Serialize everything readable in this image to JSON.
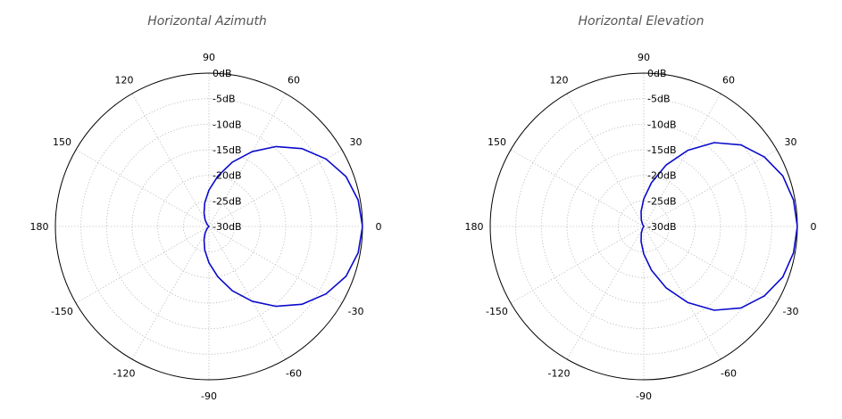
{
  "chart_data": [
    {
      "type": "polar",
      "title": "Horizontal Azimuth",
      "angle_ticks": [
        0,
        30,
        60,
        90,
        120,
        150,
        180,
        -150,
        -120,
        -90,
        -60,
        -30
      ],
      "radial_ticks": [
        "0dB",
        "-5dB",
        "-10dB",
        "-15dB",
        "-20dB",
        "-25dB",
        "-30dB"
      ],
      "rlim_db": [
        -30,
        0
      ],
      "grid": true,
      "series": [
        {
          "color": "#0a0acc",
          "theta": [
            0,
            10,
            20,
            30,
            40,
            50,
            60,
            70,
            80,
            90,
            100,
            110,
            120,
            130,
            140,
            150,
            160,
            170,
            180,
            -170,
            -160,
            -150,
            -140,
            -130,
            -120,
            -110,
            -100,
            -90,
            -80,
            -70,
            -60,
            -50,
            -40,
            -30,
            -20,
            -10
          ],
          "db": [
            0,
            -0.4,
            -1.5,
            -3.6,
            -6.3,
            -9.6,
            -13.1,
            -16.6,
            -20.0,
            -22.9,
            -25.3,
            -27.2,
            -28.5,
            -29.4,
            -29.9,
            -30,
            -30,
            -30,
            -30,
            -30,
            -30,
            -30,
            -29.9,
            -29.4,
            -28.5,
            -27.2,
            -25.3,
            -22.9,
            -20.0,
            -16.6,
            -13.1,
            -9.6,
            -6.3,
            -3.6,
            -1.5,
            -0.4
          ]
        }
      ]
    },
    {
      "type": "polar",
      "title": "Horizontal Elevation",
      "angle_ticks": [
        0,
        30,
        60,
        90,
        120,
        150,
        180,
        -150,
        -120,
        -90,
        -60,
        -30
      ],
      "radial_ticks": [
        "0dB",
        "-5dB",
        "-10dB",
        "-15dB",
        "-20dB",
        "-25dB",
        "-30dB"
      ],
      "rlim_db": [
        -30,
        0
      ],
      "grid": true,
      "series": [
        {
          "color": "#0a0acc",
          "theta": [
            0,
            10,
            20,
            30,
            40,
            50,
            60,
            70,
            80,
            90,
            100,
            110,
            120,
            130,
            140,
            150,
            160,
            170,
            180,
            -170,
            -160,
            -150,
            -140,
            -130,
            -120,
            -110,
            -100,
            -90,
            -80,
            -70,
            -60,
            -50,
            -40,
            -30,
            -20,
            -10
          ],
          "db": [
            0,
            -0.3,
            -1.1,
            -2.8,
            -5.2,
            -8.6,
            -12.8,
            -17.2,
            -21.3,
            -24.6,
            -27.0,
            -28.6,
            -29.5,
            -29.9,
            -30,
            -30,
            -30,
            -30,
            -30,
            -30,
            -30,
            -30,
            -30,
            -29.9,
            -29.5,
            -28.6,
            -27.0,
            -24.6,
            -21.3,
            -17.2,
            -12.8,
            -8.6,
            -5.2,
            -2.8,
            -1.1,
            -0.3
          ]
        }
      ]
    }
  ]
}
